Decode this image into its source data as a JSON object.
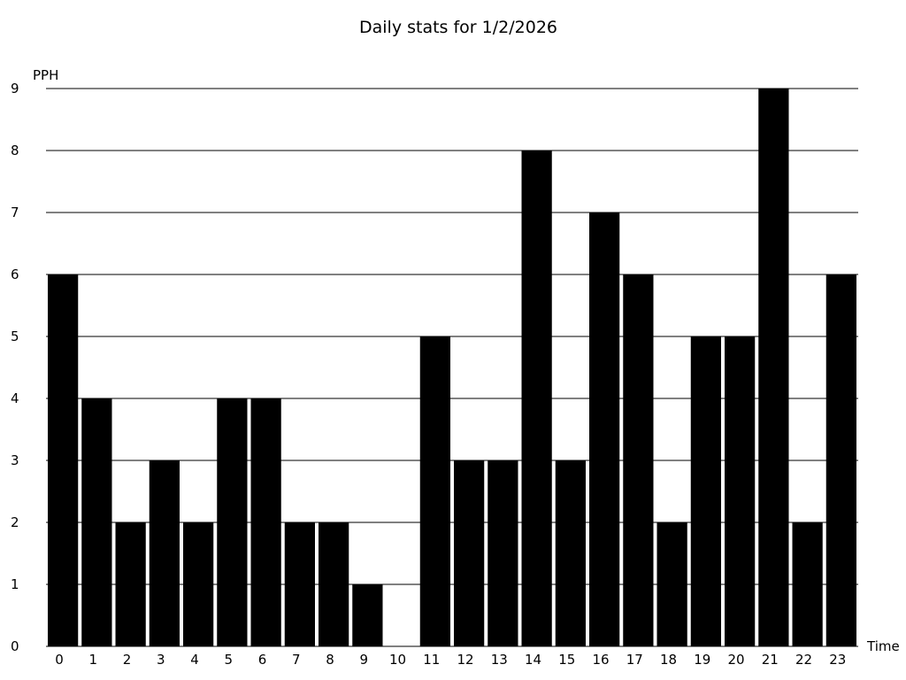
{
  "chart_data": {
    "type": "bar",
    "title": "Daily stats for 1/2/2026",
    "xlabel": "Time",
    "ylabel": "PPH",
    "categories": [
      "0",
      "1",
      "2",
      "3",
      "4",
      "5",
      "6",
      "7",
      "8",
      "9",
      "10",
      "11",
      "12",
      "13",
      "14",
      "15",
      "16",
      "17",
      "18",
      "19",
      "20",
      "21",
      "22",
      "23"
    ],
    "values": [
      6,
      4,
      2,
      3,
      2,
      4,
      4,
      2,
      2,
      1,
      0,
      5,
      3,
      3,
      8,
      3,
      7,
      6,
      2,
      5,
      5,
      9,
      2,
      6
    ],
    "ylim": [
      0,
      9
    ],
    "yticks": [
      "0",
      "1",
      "2",
      "3",
      "4",
      "5",
      "6",
      "7",
      "8",
      "9"
    ],
    "grid": true,
    "bar_color": "#000000"
  }
}
